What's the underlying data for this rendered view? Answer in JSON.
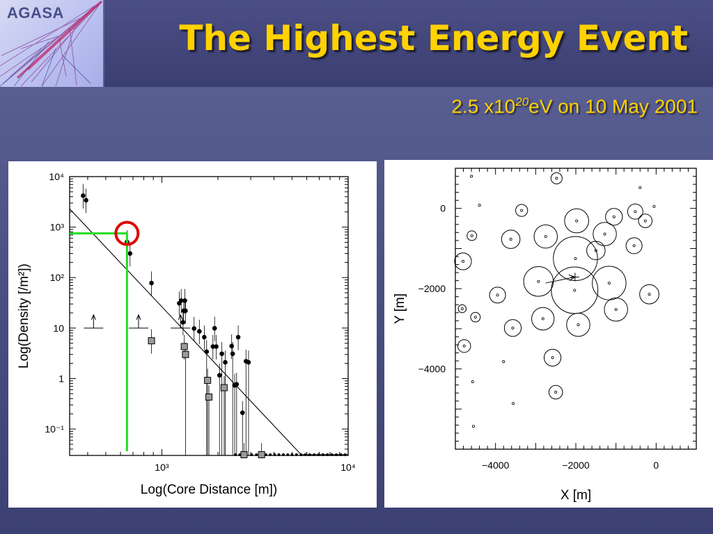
{
  "logo": {
    "text": "AGASA"
  },
  "title": "The Highest Energy Event",
  "subtitle": {
    "prefix": "2.5 x10",
    "exponent": "20",
    "suffix": "eV  on 10 May 2001"
  },
  "chart_data": [
    {
      "type": "scatter",
      "xlabel": "Log(Core Distance [m])",
      "ylabel": "Log(Density [/m²])",
      "xscale": "log",
      "yscale": "log",
      "xlim": [
        320,
        10000
      ],
      "ylim": [
        0.03,
        10000
      ],
      "x_ticks": [
        {
          "v": 1000,
          "label": "10³"
        },
        {
          "v": 10000,
          "label": "10⁴"
        }
      ],
      "y_ticks": [
        {
          "v": 10000,
          "label": "10⁴"
        },
        {
          "v": 1000,
          "label": "10³"
        },
        {
          "v": 100,
          "label": "10²"
        },
        {
          "v": 10,
          "label": "10"
        },
        {
          "v": 1,
          "label": "1"
        },
        {
          "v": 0.1,
          "label": "10⁻¹"
        }
      ],
      "series": [
        {
          "marker": "dot",
          "points": [
            [
              378,
              4200
            ],
            [
              392,
              3400
            ],
            [
              650,
              510
            ],
            [
              675,
              300
            ],
            [
              880,
              78
            ],
            [
              1240,
              31
            ],
            [
              1270,
              35
            ],
            [
              1310,
              22
            ],
            [
              1300,
              13
            ],
            [
              1330,
              35
            ],
            [
              1340,
              22
            ],
            [
              1490,
              9.8
            ],
            [
              1590,
              8.6
            ],
            [
              1690,
              6.6
            ],
            [
              1740,
              3.4
            ],
            [
              1880,
              4.3
            ],
            [
              1920,
              9.9
            ],
            [
              1960,
              4.3
            ],
            [
              2040,
              1.16
            ],
            [
              2100,
              3.1
            ],
            [
              2190,
              2.1
            ],
            [
              2370,
              4.4
            ],
            [
              2400,
              3.1
            ],
            [
              2460,
              0.73
            ],
            [
              2520,
              0.77
            ],
            [
              2570,
              6.6
            ],
            [
              2710,
              0.21
            ],
            [
              2830,
              2.2
            ],
            [
              2920,
              2.1
            ]
          ]
        },
        {
          "marker": "square",
          "points": [
            [
              880,
              5.6
            ],
            [
              1320,
              4.3
            ],
            [
              1340,
              3.0
            ],
            [
              1760,
              0.92
            ],
            [
              1790,
              0.43
            ],
            [
              2160,
              0.66
            ],
            [
              2760,
              0.031
            ],
            [
              3430,
              0.031
            ]
          ]
        },
        {
          "marker": "upper-limit",
          "points": [
            [
              430,
              10
            ],
            [
              750,
              10
            ],
            [
              1260,
              10
            ]
          ]
        },
        {
          "marker": "small-dot",
          "points": [
            [
              2480,
              0.031
            ],
            [
              2620,
              0.031
            ],
            [
              3030,
              0.031
            ],
            [
              3220,
              0.031
            ],
            [
              3620,
              0.031
            ],
            [
              3820,
              0.031
            ],
            [
              4030,
              0.031
            ],
            [
              4250,
              0.031
            ],
            [
              4490,
              0.031
            ],
            [
              4740,
              0.031
            ],
            [
              5000,
              0.031
            ],
            [
              5280,
              0.031
            ],
            [
              5580,
              0.031
            ],
            [
              5890,
              0.031
            ],
            [
              6220,
              0.031
            ],
            [
              6570,
              0.031
            ],
            [
              6940,
              0.031
            ],
            [
              7330,
              0.031
            ],
            [
              7740,
              0.031
            ],
            [
              8180,
              0.031
            ],
            [
              8640,
              0.031
            ],
            [
              9130,
              0.031
            ],
            [
              9640,
              0.031
            ]
          ]
        }
      ],
      "fit_line": [
        [
          320,
          2300
        ],
        [
          5600,
          0.031
        ],
        [
          10000,
          0.031
        ]
      ],
      "highlight": {
        "x": 650,
        "y": 750,
        "color": "#e00000"
      },
      "guide": {
        "x": 650,
        "y": 750,
        "color": "#22dd22"
      }
    },
    {
      "type": "scatter",
      "xlabel": "X [m]",
      "ylabel": "Y [m]",
      "xlim": [
        -5000,
        1000
      ],
      "ylim": [
        -6000,
        1000
      ],
      "x_ticks": [
        {
          "v": -4000,
          "label": "−4000"
        },
        {
          "v": -2000,
          "label": "−2000"
        },
        {
          "v": 0,
          "label": "0"
        }
      ],
      "y_ticks": [
        {
          "v": 0,
          "label": "0"
        },
        {
          "v": -2000,
          "label": "−2000"
        },
        {
          "v": -4000,
          "label": "−4000"
        }
      ],
      "core": {
        "x": -2020,
        "y": -1710
      },
      "arrow_from": {
        "x": -2750,
        "y": -1860
      },
      "detectors": [
        [
          -4600,
          800,
          0
        ],
        [
          -4400,
          80,
          0
        ],
        [
          -400,
          520,
          0
        ],
        [
          -50,
          50,
          0
        ],
        [
          -2480,
          750,
          140
        ],
        [
          -3350,
          -50,
          150
        ],
        [
          -1980,
          -310,
          300
        ],
        [
          -1050,
          -210,
          210
        ],
        [
          -520,
          -80,
          190
        ],
        [
          -270,
          -310,
          170
        ],
        [
          -3620,
          -770,
          230
        ],
        [
          -2750,
          -700,
          290
        ],
        [
          -1280,
          -640,
          290
        ],
        [
          -4590,
          -680,
          120
        ],
        [
          -550,
          -930,
          200
        ],
        [
          -4810,
          -1320,
          210
        ],
        [
          -2010,
          -1250,
          550
        ],
        [
          -1500,
          -1050,
          230
        ],
        [
          -2930,
          -1820,
          370
        ],
        [
          -2030,
          -2040,
          580
        ],
        [
          -1170,
          -1860,
          420
        ],
        [
          -3950,
          -2160,
          200
        ],
        [
          -170,
          -2140,
          240
        ],
        [
          -4830,
          -2500,
          100
        ],
        [
          -4500,
          -2710,
          120
        ],
        [
          -2820,
          -2750,
          280
        ],
        [
          -1000,
          -2520,
          290
        ],
        [
          -1940,
          -2900,
          290
        ],
        [
          -3570,
          -2980,
          210
        ],
        [
          -4780,
          -3430,
          160
        ],
        [
          -3800,
          -3820,
          0
        ],
        [
          -2580,
          -3720,
          210
        ],
        [
          -4570,
          -4320,
          0
        ],
        [
          -3560,
          -4860,
          0
        ],
        [
          -2500,
          -4580,
          170
        ],
        [
          -4550,
          -5430,
          0
        ]
      ]
    }
  ]
}
